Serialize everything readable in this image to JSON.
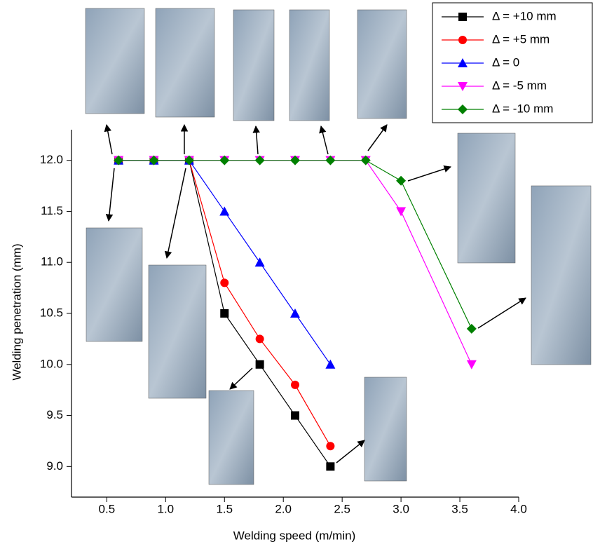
{
  "chart_data": {
    "type": "line",
    "x_label": "Welding speed (m/min)",
    "y_label": "Welding penetration (mm)",
    "xlim": [
      0.2,
      4.0
    ],
    "ylim": [
      8.7,
      12.3
    ],
    "xticks": [
      0.5,
      {
        "value": 1,
        "label": "1.0"
      },
      1.5,
      {
        "value": 2,
        "label": "2.0"
      },
      2.5,
      {
        "value": 3,
        "label": "3.0"
      },
      3.5,
      {
        "value": 4,
        "label": "4.0"
      }
    ],
    "yticks": [
      {
        "value": 9,
        "label": "9.0"
      },
      9.5,
      {
        "value": 10,
        "label": "10.0"
      },
      10.5,
      {
        "value": 11,
        "label": "11.0"
      },
      11.5,
      {
        "value": 12,
        "label": "12.0"
      }
    ],
    "series": [
      {
        "name": "Δ = +10 mm",
        "color": "#000000",
        "marker": "square",
        "x": [
          0.6,
          0.9,
          1.2,
          1.5,
          1.8,
          2.1,
          2.4
        ],
        "values": [
          12,
          12,
          12,
          10.5,
          10,
          9.5,
          9
        ]
      },
      {
        "name": "Δ = +5 mm",
        "color": "#ff0000",
        "marker": "circle",
        "x": [
          0.6,
          0.9,
          1.2,
          1.5,
          1.8,
          2.1,
          2.4
        ],
        "values": [
          12,
          12,
          12,
          10.8,
          10.25,
          9.8,
          9.2
        ]
      },
      {
        "name": "Δ = 0",
        "color": "#0000ff",
        "marker": "triangle-up",
        "x": [
          0.6,
          0.9,
          1.2,
          1.5,
          1.8,
          2.1,
          2.4
        ],
        "values": [
          12,
          12,
          12,
          11.5,
          11,
          10.5,
          10
        ]
      },
      {
        "name": "Δ = -5 mm",
        "color": "#ff00ff",
        "marker": "triangle-down",
        "x": [
          0.6,
          0.9,
          1.2,
          1.5,
          1.8,
          2.1,
          2.4,
          2.7,
          3.0,
          3.6
        ],
        "values": [
          12,
          12,
          12,
          12,
          12,
          12,
          12,
          12,
          11.5,
          10
        ]
      },
      {
        "name": "Δ = -10 mm",
        "color": "#008000",
        "marker": "diamond",
        "x": [
          0.6,
          0.9,
          1.2,
          1.5,
          1.8,
          2.1,
          2.4,
          2.7,
          3.0,
          3.6
        ],
        "values": [
          12,
          12,
          12,
          12,
          12,
          12,
          12,
          12,
          11.8,
          10.35
        ]
      }
    ],
    "legend": "top-right"
  }
}
